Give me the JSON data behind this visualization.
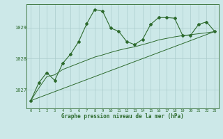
{
  "title": "Graphe pression niveau de la mer (hPa)",
  "background_color": "#cce8e8",
  "grid_color": "#aacccc",
  "line_color": "#2d6a2d",
  "xlim": [
    -0.5,
    23.5
  ],
  "ylim": [
    1026.4,
    1029.75
  ],
  "yticks": [
    1027,
    1028,
    1029
  ],
  "xticks": [
    0,
    1,
    2,
    3,
    4,
    5,
    6,
    7,
    8,
    9,
    10,
    11,
    12,
    13,
    14,
    15,
    16,
    17,
    18,
    19,
    20,
    21,
    22,
    23
  ],
  "series1_x": [
    0,
    1,
    2,
    3,
    4,
    5,
    6,
    7,
    8,
    9,
    10,
    11,
    12,
    13,
    14,
    15,
    16,
    17,
    18,
    19,
    20,
    21,
    22,
    23
  ],
  "series1_y": [
    1026.65,
    1027.22,
    1027.55,
    1027.3,
    1027.85,
    1028.15,
    1028.55,
    1029.12,
    1029.58,
    1029.52,
    1028.98,
    1028.88,
    1028.55,
    1028.45,
    1028.62,
    1029.1,
    1029.32,
    1029.32,
    1029.3,
    1028.75,
    1028.75,
    1029.1,
    1029.18,
    1028.88
  ],
  "series2_x": [
    0,
    1,
    2,
    3,
    4,
    5,
    6,
    7,
    8,
    9,
    10,
    11,
    12,
    13,
    14,
    15,
    16,
    17,
    18,
    19,
    20,
    21,
    22,
    23
  ],
  "series2_y": [
    1026.65,
    1027.05,
    1027.42,
    1027.48,
    1027.65,
    1027.75,
    1027.85,
    1027.95,
    1028.05,
    1028.12,
    1028.2,
    1028.27,
    1028.33,
    1028.38,
    1028.45,
    1028.52,
    1028.6,
    1028.65,
    1028.7,
    1028.74,
    1028.77,
    1028.8,
    1028.83,
    1028.87
  ],
  "series3_x": [
    0,
    23
  ],
  "series3_y": [
    1026.65,
    1028.87
  ]
}
